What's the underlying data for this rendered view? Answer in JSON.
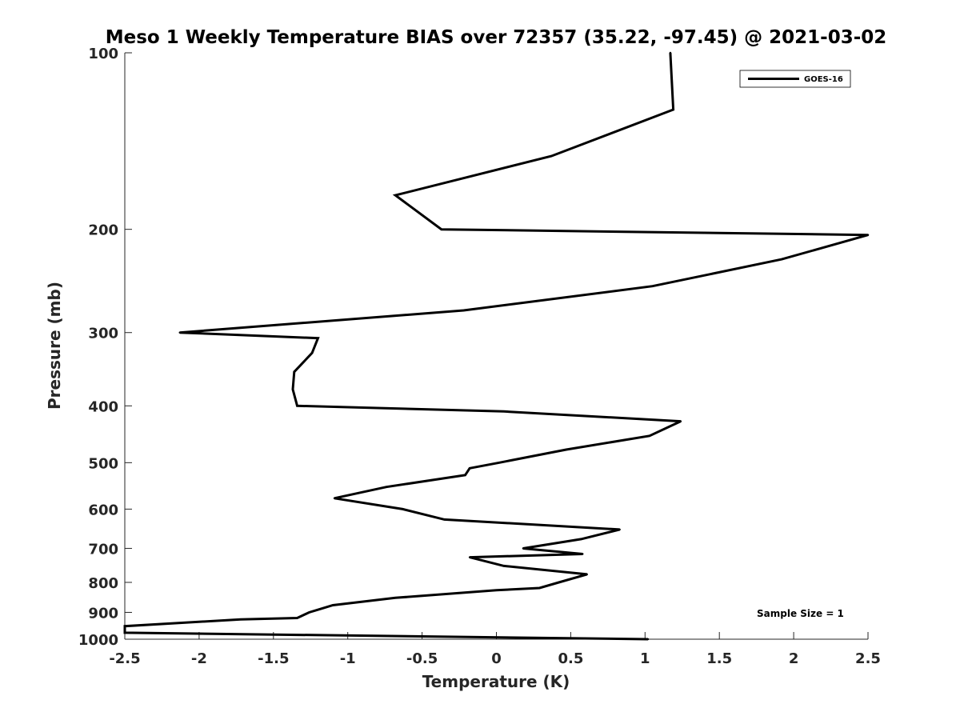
{
  "chart_data": {
    "type": "line",
    "title": "Meso 1 Weekly Temperature BIAS over 72357 (35.22, -97.45) @ 2021-03-02",
    "xlabel": "Temperature (K)",
    "ylabel": "Pressure (mb)",
    "xlim": [
      -2.5,
      2.5
    ],
    "ylim": [
      100,
      1000
    ],
    "y_scale": "log",
    "y_reversed": true,
    "grid": false,
    "legend_position": "top-right",
    "x_ticks": [
      "-2.5",
      "-2",
      "-1.5",
      "-1",
      "-0.5",
      "0",
      "0.5",
      "1",
      "1.5",
      "2",
      "2.5"
    ],
    "y_ticks": [
      "100",
      "200",
      "300",
      "400",
      "500",
      "600",
      "700",
      "800",
      "900",
      "1000"
    ],
    "annotation": "Sample Size = 1",
    "series": [
      {
        "name": "GOES-16",
        "color": "#000000",
        "points": [
          {
            "x": 1.17,
            "y": 100
          },
          {
            "x": 1.19,
            "y": 125
          },
          {
            "x": 0.37,
            "y": 150
          },
          {
            "x": -0.68,
            "y": 175
          },
          {
            "x": -0.37,
            "y": 200
          },
          {
            "x": 2.5,
            "y": 200
          },
          {
            "x": 2.5,
            "y": 200
          },
          {
            "x": 1.92,
            "y": 225
          },
          {
            "x": 1.05,
            "y": 250
          },
          {
            "x": -0.22,
            "y": 275
          },
          {
            "x": -2.13,
            "y": 300
          },
          {
            "x": -1.2,
            "y": 300
          },
          {
            "x": -1.24,
            "y": 325
          },
          {
            "x": -1.36,
            "y": 350
          },
          {
            "x": -1.37,
            "y": 375
          },
          {
            "x": -1.34,
            "y": 400
          },
          {
            "x": 0.05,
            "y": 400
          },
          {
            "x": 1.24,
            "y": 425
          },
          {
            "x": 1.03,
            "y": 450
          },
          {
            "x": 0.47,
            "y": 475
          },
          {
            "x": 0.02,
            "y": 500
          },
          {
            "x": -0.18,
            "y": 500
          },
          {
            "x": -0.21,
            "y": 525
          },
          {
            "x": -0.74,
            "y": 550
          },
          {
            "x": -1.09,
            "y": 575
          },
          {
            "x": -0.63,
            "y": 600
          },
          {
            "x": -0.35,
            "y": 625
          },
          {
            "x": 0.83,
            "y": 650
          },
          {
            "x": 0.57,
            "y": 675
          },
          {
            "x": 0.18,
            "y": 700
          },
          {
            "x": 0.58,
            "y": 700
          },
          {
            "x": -0.18,
            "y": 725
          },
          {
            "x": 0.05,
            "y": 750
          },
          {
            "x": 0.61,
            "y": 775
          },
          {
            "x": 0.42,
            "y": 800
          },
          {
            "x": 0.29,
            "y": 800
          },
          {
            "x": 0.0,
            "y": 825
          },
          {
            "x": -0.68,
            "y": 850
          },
          {
            "x": -1.1,
            "y": 875
          },
          {
            "x": -1.26,
            "y": 900
          },
          {
            "x": -1.34,
            "y": 900
          },
          {
            "x": -1.72,
            "y": 925
          },
          {
            "x": -2.5,
            "y": 950
          },
          {
            "x": -2.5,
            "y": 975
          },
          {
            "x": 1.02,
            "y": 1000
          }
        ]
      }
    ]
  }
}
